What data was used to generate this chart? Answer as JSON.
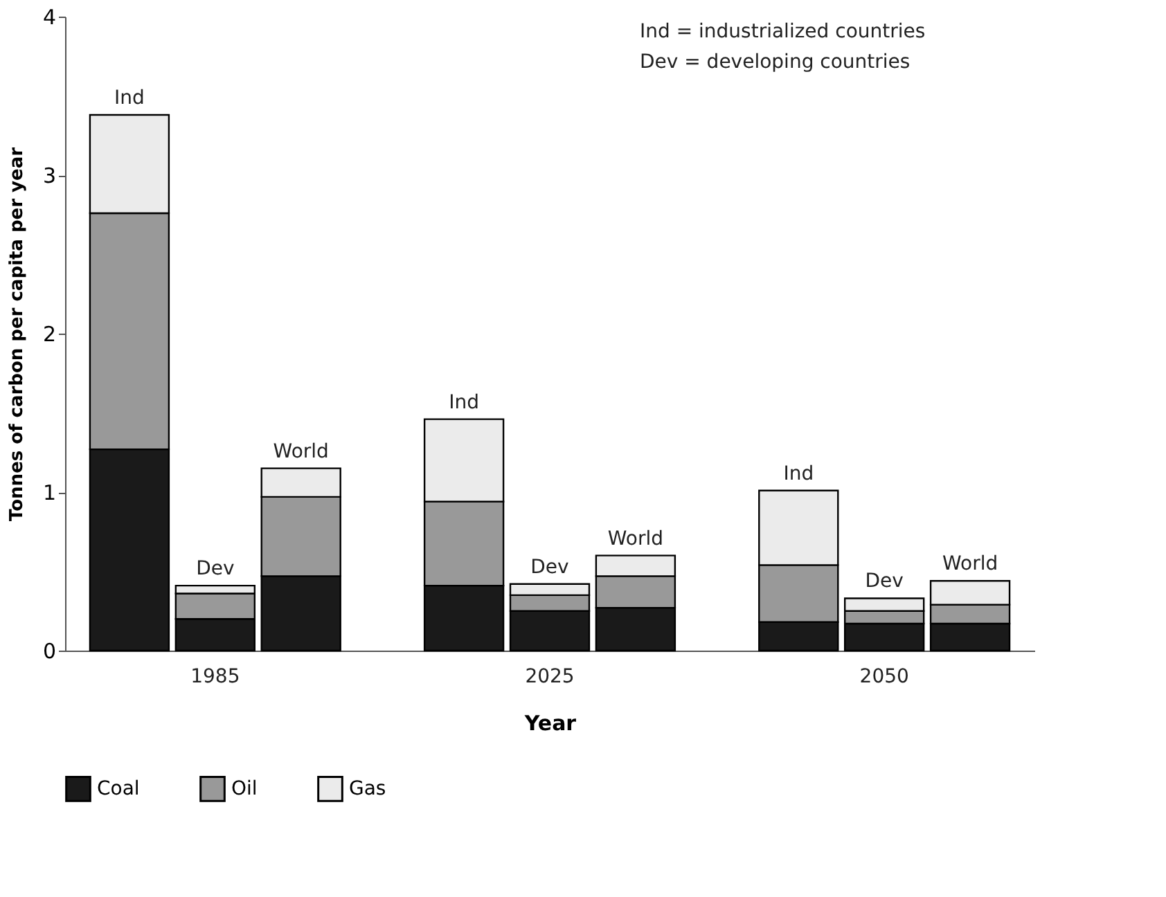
{
  "chart_data": {
    "type": "bar",
    "stacked": true,
    "categories": [
      "Ind",
      "Dev",
      "World",
      "Ind",
      "Dev",
      "World",
      "Ind",
      "Dev",
      "World"
    ],
    "series": [
      {
        "name": "Coal",
        "color": "#1a1a1a",
        "values": [
          1.27,
          0.2,
          0.47,
          0.41,
          0.25,
          0.27,
          0.18,
          0.17,
          0.17
        ]
      },
      {
        "name": "Oil",
        "color": "#999999",
        "values": [
          1.49,
          0.16,
          0.5,
          0.53,
          0.1,
          0.2,
          0.36,
          0.08,
          0.12
        ]
      },
      {
        "name": "Gas",
        "color": "#ebebeb",
        "values": [
          0.62,
          0.05,
          0.18,
          0.52,
          0.07,
          0.13,
          0.47,
          0.08,
          0.15
        ]
      }
    ],
    "xlabel": "Year",
    "ylabel": "Tonnes of carbon per capita per year",
    "ylim": [
      0,
      4
    ],
    "yticks": [
      0,
      1,
      2,
      3,
      4
    ],
    "grid": false,
    "legend": "bottom",
    "annotations": [
      {
        "text": "1985"
      },
      {
        "text": "2025"
      },
      {
        "text": "2050"
      },
      "Ind  = industrialized countries",
      "Dev = developing countries"
    ]
  }
}
